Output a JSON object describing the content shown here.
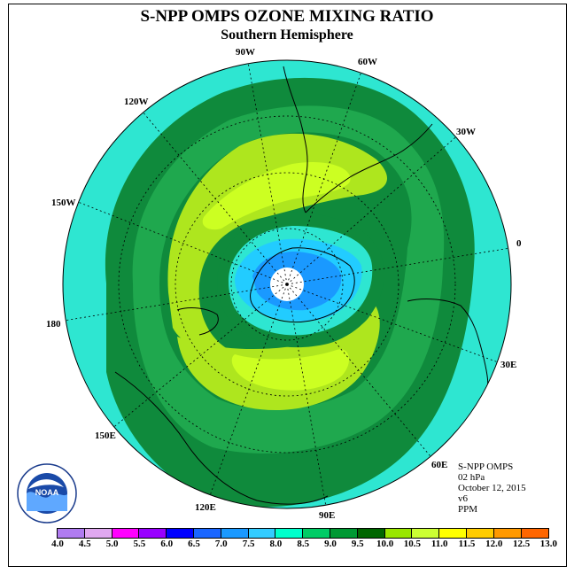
{
  "title": "S-NPP OMPS OZONE MIXING RATIO",
  "subtitle": "Southern Hemisphere",
  "longitude_labels": [
    "90W",
    "60W",
    "30W",
    "0",
    "30E",
    "60E",
    "90E",
    "120E",
    "150E",
    "180",
    "150W",
    "120W"
  ],
  "info": {
    "instrument": "S-NPP OMPS",
    "level": "02 hPa",
    "date": "October 12, 2015",
    "version": "v6",
    "units": "PPM"
  },
  "logo": {
    "text": "NOAA",
    "ring_text": "NATIONAL OCEANIC AND ATMOSPHERIC ADMINISTRATION · U.S. DEPARTMENT OF COMMERCE"
  },
  "colorbar": {
    "ticks": [
      "4.0",
      "4.5",
      "5.0",
      "5.5",
      "6.0",
      "6.5",
      "7.0",
      "7.5",
      "8.0",
      "8.5",
      "9.0",
      "9.5",
      "10.0",
      "10.5",
      "11.0",
      "11.5",
      "12.0",
      "12.5",
      "13.0"
    ],
    "colors": [
      "#b07cf0",
      "#e0a8f0",
      "#ff00ff",
      "#9900ff",
      "#0000ff",
      "#1a66ff",
      "#1a99ff",
      "#33ccff",
      "#00ffcc",
      "#00cc66",
      "#009933",
      "#006600",
      "#99e600",
      "#ccff33",
      "#ffff00",
      "#ffcc00",
      "#ff9900",
      "#ff6600",
      "#ff0000",
      "#a65c2e"
    ]
  },
  "map_colors": {
    "v7_5": "#2ee6d1",
    "v8_0": "#1fa84e",
    "v8_5": "#0f8a3c",
    "v9_0": "#aee61e",
    "v9_5": "#ccff22",
    "v7_0": "#22ccff",
    "v6_5": "#1a99ff",
    "pole": "#ffffff"
  }
}
